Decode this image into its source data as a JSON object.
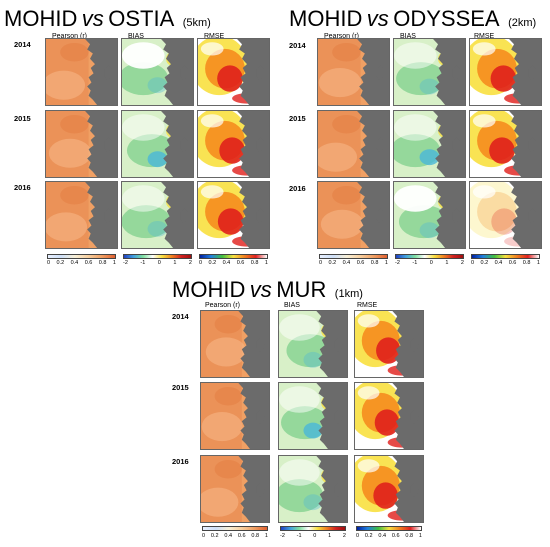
{
  "panels": [
    {
      "id": "ostia",
      "title_left": "MOHID",
      "title_vs": "vs",
      "title_right": "OSTIA",
      "resolution": "(5km)",
      "columns": [
        "Pearson (r)",
        "BIAS",
        "RMSE"
      ],
      "years": [
        "2014",
        "2015",
        "2016"
      ],
      "pearson_ticks": [
        "0",
        "0.2",
        "0.4",
        "0.6",
        "0.8",
        "1"
      ],
      "bias_ticks": [
        "-2",
        "-1",
        "0",
        "1",
        "2"
      ],
      "rmse_ticks": [
        "0",
        "0.2",
        "0.4",
        "0.6",
        "0.8",
        "1"
      ]
    },
    {
      "id": "odyssea",
      "title_left": "MOHID",
      "title_vs": "vs",
      "title_right": "ODYSSEA",
      "resolution": "(2km)",
      "columns": [
        "Pearson (r)",
        "BIAS",
        "RMSE"
      ],
      "years": [
        "2014",
        "2015",
        "2016"
      ],
      "pearson_ticks": [
        "0",
        "0.2",
        "0.4",
        "0.6",
        "0.8",
        "1"
      ],
      "bias_ticks": [
        "-2",
        "-1",
        "0",
        "1",
        "2"
      ],
      "rmse_ticks": [
        "0",
        "0.2",
        "0.4",
        "0.6",
        "0.8",
        "1"
      ]
    },
    {
      "id": "mur",
      "title_left": "MOHID",
      "title_vs": "vs",
      "title_right": "MUR",
      "resolution": "(1km)",
      "columns": [
        "Pearson (r)",
        "BIAS",
        "RMSE"
      ],
      "years": [
        "2014",
        "2015",
        "2016"
      ],
      "pearson_ticks": [
        "0",
        "0.2",
        "0.4",
        "0.6",
        "0.8",
        "1"
      ],
      "bias_ticks": [
        "-2",
        "-1",
        "0",
        "1",
        "2"
      ],
      "rmse_ticks": [
        "0",
        "0.2",
        "0.4",
        "0.6",
        "0.8",
        "1"
      ]
    }
  ],
  "colors": {
    "land": "#6b6b6b",
    "pearson_base": "#f0a064",
    "pearson_high": "#e8874f",
    "bias_base": "#d8f0c8",
    "bias_low": "#7fd08c",
    "bias_neg": "#4ab8d8",
    "bias_white": "#ffffff",
    "rmse_red": "#e0201c",
    "rmse_orange": "#f58c1e",
    "rmse_yellow": "#f8e040",
    "rmse_white": "#ffffff"
  }
}
